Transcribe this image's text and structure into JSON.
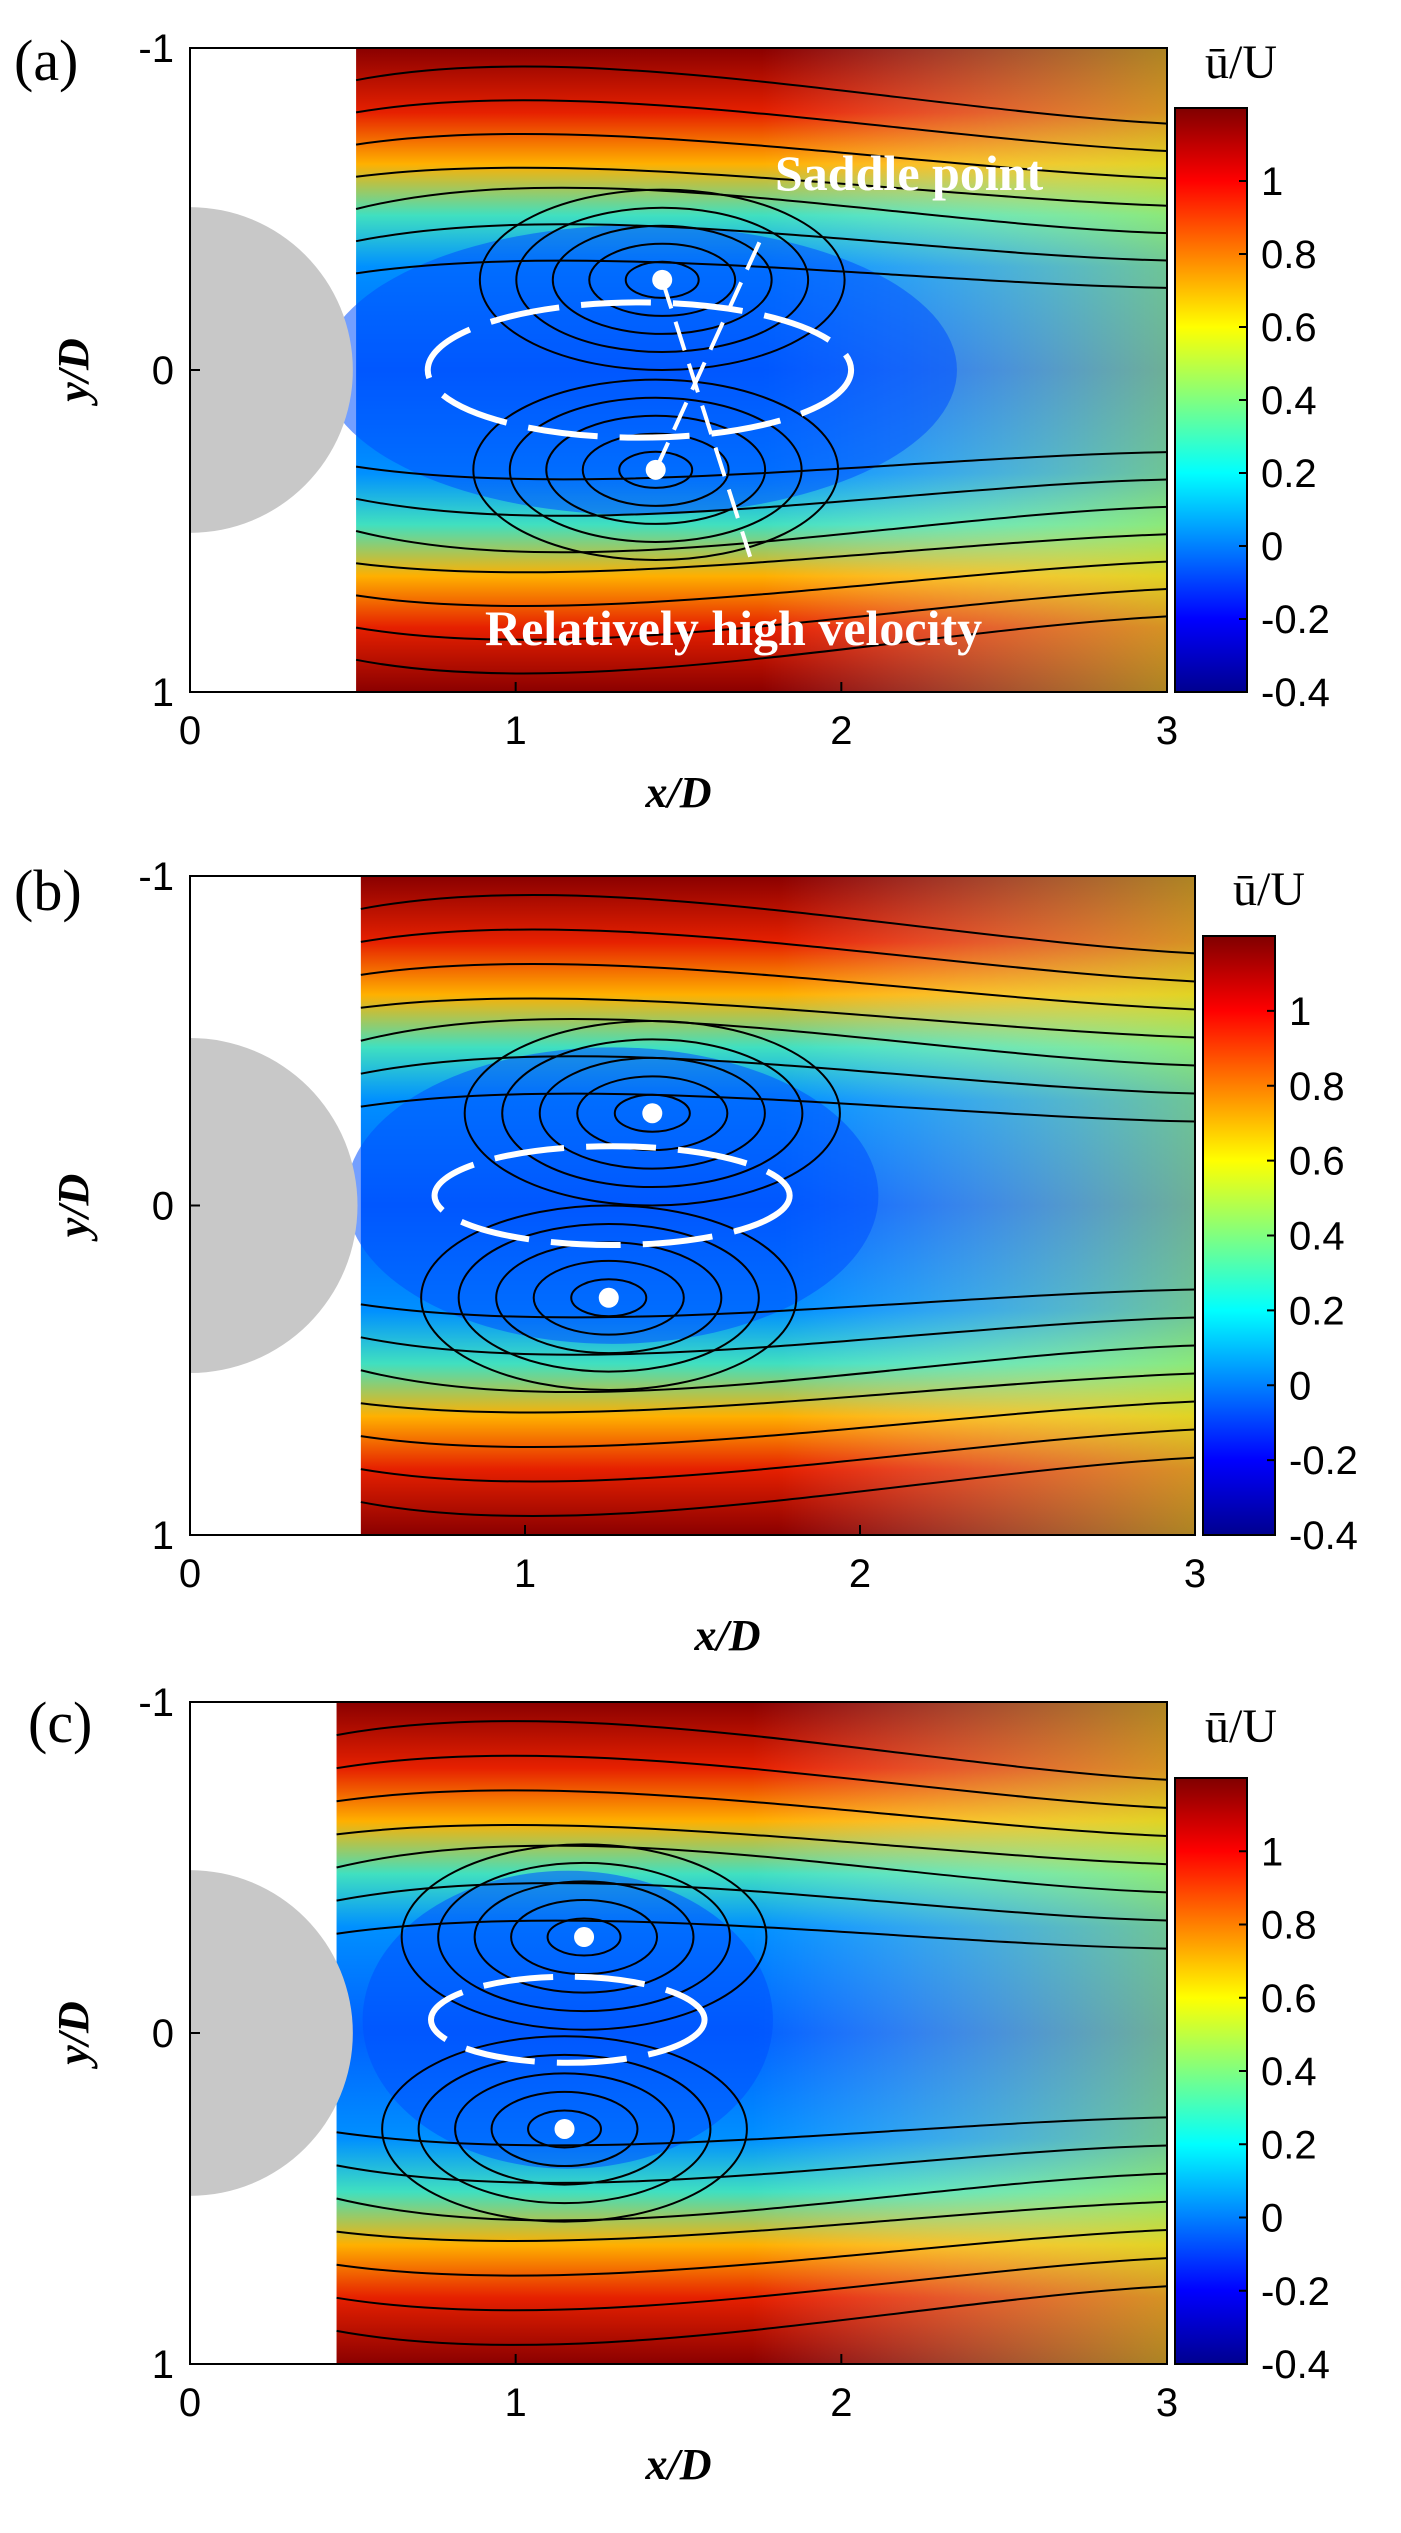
{
  "chart_data": [
    {
      "type": "heatmap",
      "panel_label": "(a)",
      "xlabel": "x/D",
      "ylabel": "y/D",
      "xlim": [
        0,
        3
      ],
      "ylim": [
        1,
        -1
      ],
      "x_ticks": [
        "0",
        "1",
        "2",
        "3"
      ],
      "y_ticks": [
        "-1",
        "0",
        "1"
      ],
      "colorbar": {
        "title": "ū/U",
        "range": [
          -0.4,
          1.2
        ],
        "ticks": [
          "1",
          "0.8",
          "0.6",
          "0.4",
          "0.2",
          "0",
          "-0.2",
          "-0.4"
        ]
      },
      "measurement_start_x": 0.51,
      "vortex_centers": [
        {
          "x": 1.45,
          "y": -0.28
        },
        {
          "x": 1.43,
          "y": 0.31
        }
      ],
      "reverse_flow_ellipse": {
        "cx": 1.38,
        "cy": 0.0,
        "rx": 0.65,
        "ry": 0.21
      },
      "annotations": [
        "Saddle point",
        "Relatively high velocity"
      ]
    },
    {
      "type": "heatmap",
      "panel_label": "(b)",
      "xlabel": "x/D",
      "ylabel": "y/D",
      "xlim": [
        0,
        3
      ],
      "ylim": [
        1,
        -1
      ],
      "x_ticks": [
        "0",
        "1",
        "2",
        "3"
      ],
      "y_ticks": [
        "-1",
        "0",
        "1"
      ],
      "colorbar": {
        "title": "ū/U",
        "range": [
          -0.4,
          1.2
        ],
        "ticks": [
          "1",
          "0.8",
          "0.6",
          "0.4",
          "0.2",
          "0",
          "-0.2",
          "-0.4"
        ]
      },
      "measurement_start_x": 0.51,
      "vortex_centers": [
        {
          "x": 1.38,
          "y": -0.28
        },
        {
          "x": 1.25,
          "y": 0.28
        }
      ],
      "reverse_flow_ellipse": {
        "cx": 1.26,
        "cy": -0.03,
        "rx": 0.53,
        "ry": 0.15
      },
      "annotations": []
    },
    {
      "type": "heatmap",
      "panel_label": "(c)",
      "xlabel": "x/D",
      "ylabel": "y/D",
      "xlim": [
        0,
        3
      ],
      "ylim": [
        1,
        -1
      ],
      "x_ticks": [
        "0",
        "1",
        "2",
        "3"
      ],
      "y_ticks": [
        "-1",
        "0",
        "1"
      ],
      "colorbar": {
        "title": "ū/U",
        "range": [
          -0.4,
          1.2
        ],
        "ticks": [
          "1",
          "0.8",
          "0.6",
          "0.4",
          "0.2",
          "0",
          "-0.2",
          "-0.4"
        ]
      },
      "measurement_start_x": 0.45,
      "vortex_centers": [
        {
          "x": 1.21,
          "y": -0.29
        },
        {
          "x": 1.15,
          "y": 0.29
        }
      ],
      "reverse_flow_ellipse": {
        "cx": 1.16,
        "cy": -0.04,
        "rx": 0.42,
        "ry": 0.13
      },
      "annotations": []
    }
  ],
  "colormap": [
    "#00008f",
    "#0000ff",
    "#0080ff",
    "#00ffff",
    "#80ff80",
    "#ffff00",
    "#ff8000",
    "#ff0000",
    "#800000"
  ],
  "cylinder_color": "#c8c8c8",
  "streamline_color": "#000000",
  "marker_color": "#ffffff"
}
